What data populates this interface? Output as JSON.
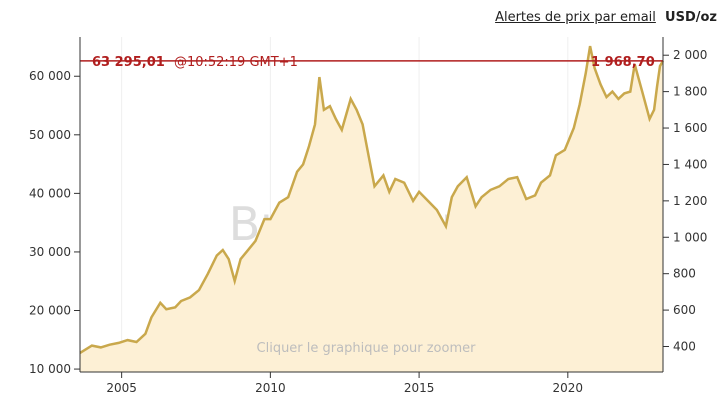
{
  "header": {
    "alert_link": "Alertes de prix par email",
    "unit": "USD/oz"
  },
  "readout": {
    "left_value": "63 295,01",
    "time": "@10:52:19 GMT+1",
    "right_value": "1 968,70"
  },
  "watermark": "BullionVault",
  "hint": "Cliquer le graphique pour zoomer",
  "colors": {
    "line": "#c9a84c",
    "fill": "#fdf0d5",
    "marker": "#b01e1e",
    "grid": "#efefef",
    "axis": "#333333"
  },
  "chart_data": {
    "type": "area",
    "title": "",
    "xlabel": "",
    "ylabel": "USD/oz",
    "x_ticks": [
      "2005",
      "2010",
      "2015",
      "2020"
    ],
    "y_left_ticks": [
      "10 000",
      "20 000",
      "30 000",
      "40 000",
      "50 000",
      "60 000"
    ],
    "y_left_values": [
      10000,
      20000,
      30000,
      40000,
      50000,
      60000
    ],
    "y_right_ticks": [
      "400",
      "600",
      "800",
      "1 000",
      "1 200",
      "1 400",
      "1 600",
      "1 800",
      "2 000"
    ],
    "y_right_values": [
      400,
      600,
      800,
      1000,
      1200,
      1400,
      1600,
      1800,
      2000
    ],
    "xlim": [
      2003.6,
      2023.2
    ],
    "ylim_right": [
      260,
      2100
    ],
    "ylim_left": [
      9500,
      66700
    ],
    "marker_value_right": 1968.7,
    "grid": true,
    "series": [
      {
        "axis": "right",
        "x": [
          2003.6,
          2004.0,
          2004.3,
          2004.6,
          2004.9,
          2005.2,
          2005.5,
          2005.8,
          2006.0,
          2006.3,
          2006.5,
          2006.8,
          2007.0,
          2007.3,
          2007.6,
          2007.9,
          2008.2,
          2008.4,
          2008.6,
          2008.8,
          2009.0,
          2009.2,
          2009.5,
          2009.8,
          2010.0,
          2010.3,
          2010.6,
          2010.9,
          2011.1,
          2011.3,
          2011.5,
          2011.65,
          2011.8,
          2012.0,
          2012.2,
          2012.4,
          2012.7,
          2012.9,
          2013.1,
          2013.3,
          2013.5,
          2013.8,
          2014.0,
          2014.2,
          2014.5,
          2014.8,
          2015.0,
          2015.3,
          2015.6,
          2015.9,
          2016.1,
          2016.3,
          2016.6,
          2016.9,
          2017.1,
          2017.4,
          2017.7,
          2018.0,
          2018.3,
          2018.6,
          2018.9,
          2019.1,
          2019.4,
          2019.6,
          2019.9,
          2020.0,
          2020.2,
          2020.4,
          2020.6,
          2020.75,
          2020.9,
          2021.1,
          2021.3,
          2021.5,
          2021.7,
          2021.9,
          2022.1,
          2022.25,
          2022.5,
          2022.75,
          2022.9,
          2023.0,
          2023.1,
          2023.2
        ],
        "y": [
          365,
          405,
          395,
          410,
          420,
          435,
          425,
          470,
          560,
          640,
          605,
          615,
          650,
          670,
          710,
          800,
          900,
          930,
          880,
          760,
          880,
          920,
          980,
          1100,
          1100,
          1190,
          1220,
          1360,
          1400,
          1500,
          1620,
          1880,
          1700,
          1720,
          1650,
          1590,
          1760,
          1700,
          1620,
          1450,
          1280,
          1340,
          1250,
          1320,
          1300,
          1200,
          1250,
          1200,
          1150,
          1060,
          1220,
          1280,
          1330,
          1170,
          1220,
          1260,
          1280,
          1320,
          1330,
          1210,
          1230,
          1300,
          1340,
          1450,
          1480,
          1520,
          1600,
          1730,
          1900,
          2050,
          1930,
          1840,
          1770,
          1800,
          1760,
          1790,
          1800,
          1950,
          1800,
          1650,
          1700,
          1830,
          1940,
          1968.7
        ]
      }
    ]
  }
}
